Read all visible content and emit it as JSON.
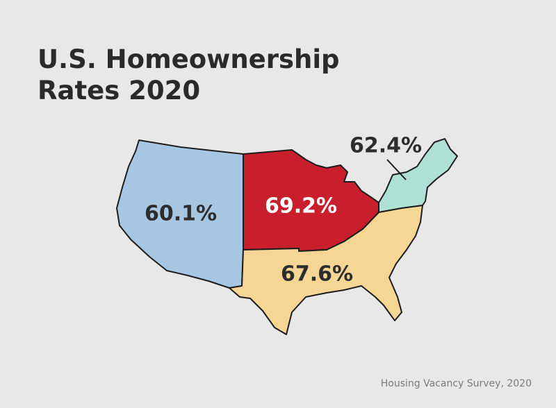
{
  "title": [
    "U.S. Homeownership",
    "Rates 2020"
  ],
  "regions": [
    {
      "label": "60.1%",
      "color": "#a7c6e1"
    },
    {
      "label": "69.2%",
      "color": "#c91f2c"
    },
    {
      "label": "67.6%",
      "color": "#f5d695"
    },
    {
      "label": "62.4%",
      "color": "#aee0d4"
    }
  ],
  "source": "Housing Vacancy Survey, 2020"
}
